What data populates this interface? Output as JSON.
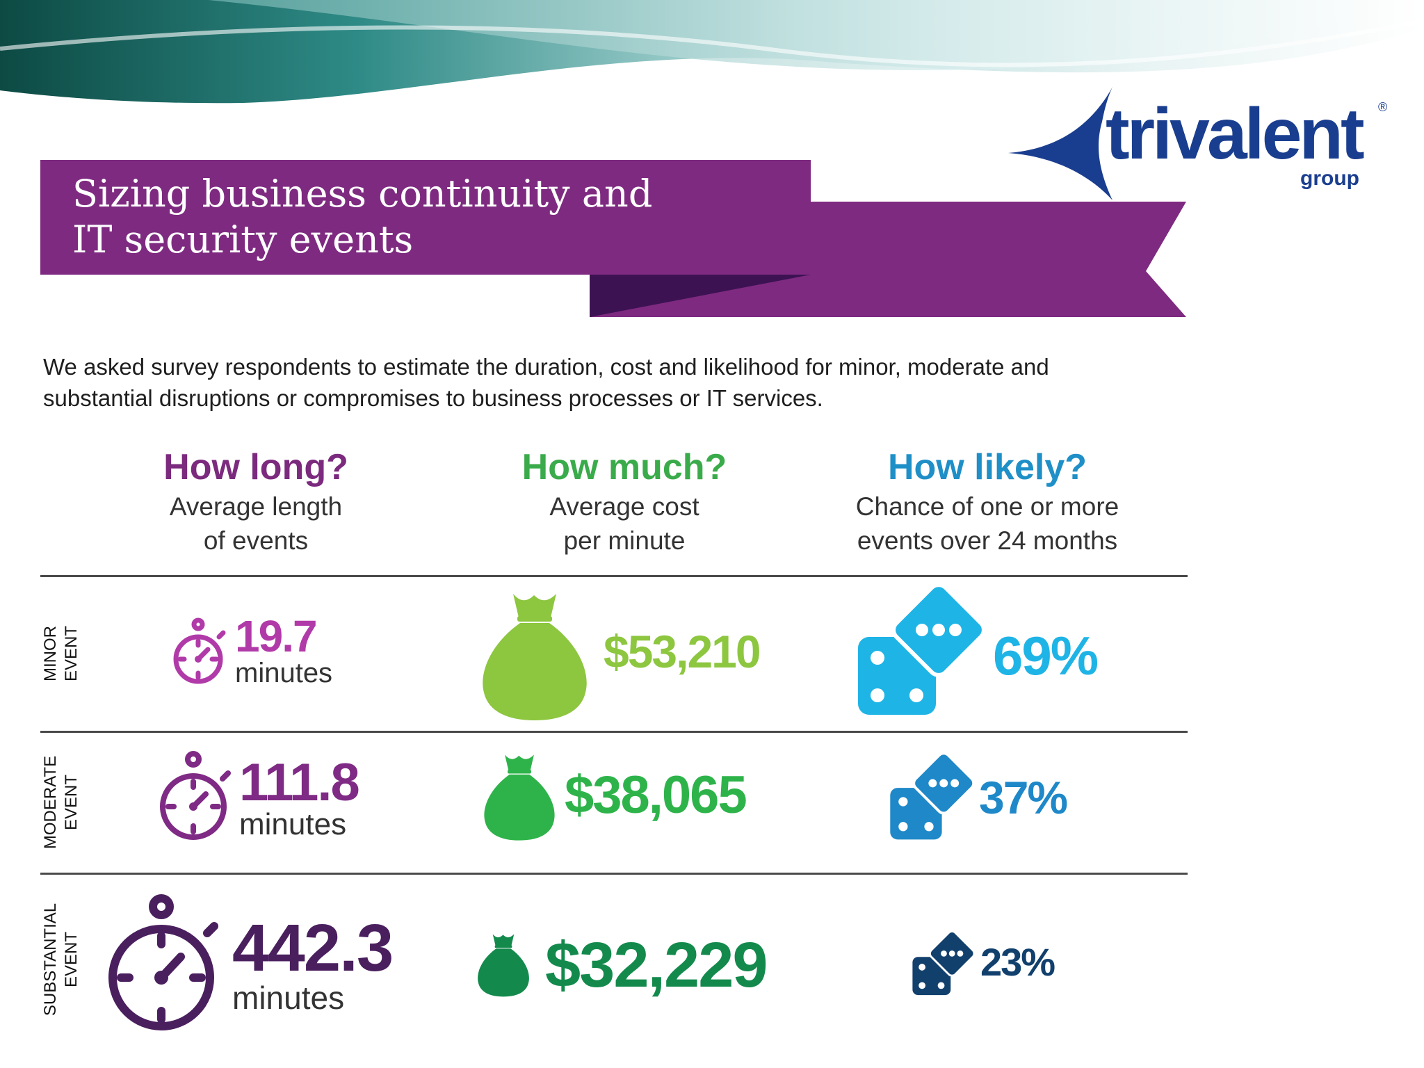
{
  "logo": {
    "name": "trivalent",
    "sub": "group",
    "mark": "®"
  },
  "banner": {
    "line1": "Sizing business continuity and",
    "line2": "IT security events"
  },
  "intro": {
    "line1": "We asked survey respondents to estimate the duration, cost and likelihood for minor, moderate and",
    "line2": "substantial disruptions or compromises to business processes or IT services."
  },
  "columns": [
    {
      "title": "How long?",
      "sub1": "Average length",
      "sub2": "of events",
      "color": "#7b2a7e"
    },
    {
      "title": "How much?",
      "sub1": "Average cost",
      "sub2": "per minute",
      "color": "#3aab4a"
    },
    {
      "title": "How likely?",
      "sub1": "Chance of one or more",
      "sub2": "events over 24 months",
      "color": "#1f8fc7"
    }
  ],
  "rows": [
    {
      "label1": "MINOR",
      "label2": "EVENT",
      "duration": "19.7",
      "duration_unit": "minutes",
      "cost": "$53,210",
      "likelihood": "69%",
      "colors": {
        "duration": "#b13aa9",
        "cost": "#8dc63f",
        "likelihood": "#1fb4e6"
      }
    },
    {
      "label1": "MODERATE",
      "label2": "EVENT",
      "duration": "111.8",
      "duration_unit": "minutes",
      "cost": "$38,065",
      "likelihood": "37%",
      "colors": {
        "duration": "#7f2a85",
        "cost": "#2eb34a",
        "likelihood": "#1e88c8"
      }
    },
    {
      "label1": "SUBSTANTIAL",
      "label2": "EVENT",
      "duration": "442.3",
      "duration_unit": "minutes",
      "cost": "$32,229",
      "likelihood": "23%",
      "colors": {
        "duration": "#4a1f5e",
        "cost": "#138a4c",
        "likelihood": "#12406d"
      }
    }
  ],
  "icons": {
    "duration": "stopwatch-icon",
    "cost": "money-bag-icon",
    "likelihood": "dice-icon"
  }
}
